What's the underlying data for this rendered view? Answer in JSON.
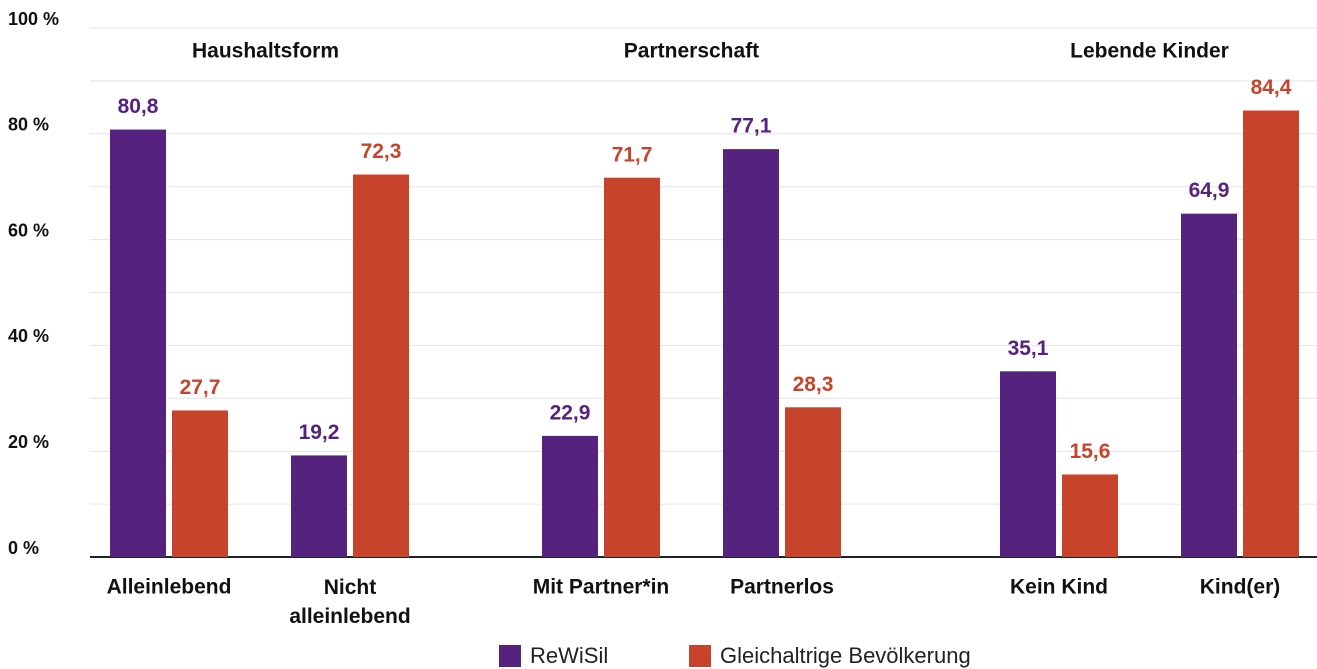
{
  "chart_data": {
    "type": "bar",
    "groups": [
      "Haushaltsform",
      "Partnerschaft",
      "Lebende Kinder"
    ],
    "categories": [
      "Alleinlebend",
      "Nicht alleinlebend",
      "Mit Partner*in",
      "Partnerlos",
      "Kein Kind",
      "Kind(er)"
    ],
    "series": [
      {
        "name": "ReWiSil",
        "color": "#55237f",
        "values": [
          80.8,
          19.2,
          22.9,
          77.1,
          35.1,
          64.9
        ],
        "value_labels": [
          "80,8",
          "19,2",
          "22,9",
          "77,1",
          "35,1",
          "64,9"
        ]
      },
      {
        "name": "Gleichaltrige Bevölkerung",
        "color": "#c8432b",
        "values": [
          27.7,
          72.3,
          71.7,
          28.3,
          15.6,
          84.4
        ],
        "value_labels": [
          "27,7",
          "72,3",
          "71,7",
          "28,3",
          "15,6",
          "84,4"
        ]
      }
    ],
    "ylim": [
      0,
      100
    ],
    "yticks": [
      {
        "value": 0,
        "label": "0 %"
      },
      {
        "value": 20,
        "label": "20 %"
      },
      {
        "value": 40,
        "label": "40 %"
      },
      {
        "value": 60,
        "label": "60 %"
      },
      {
        "value": 80,
        "label": "80 %"
      },
      {
        "value": 100,
        "label": "100 %"
      }
    ],
    "minor_yticks": [
      10,
      30,
      50,
      70,
      90
    ],
    "grid": true,
    "legend": "bottom"
  }
}
